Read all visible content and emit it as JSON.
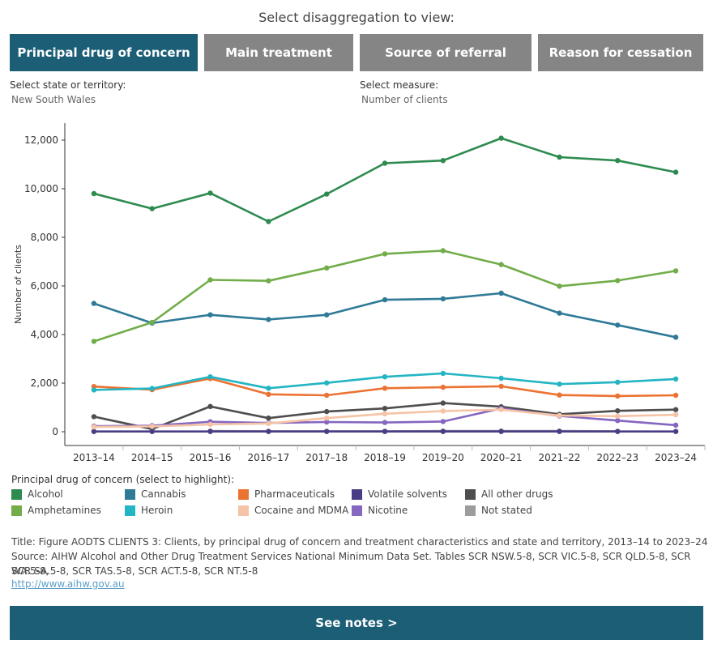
{
  "header": {
    "prompt": "Select disaggregation to view:",
    "tabs": [
      {
        "label": "Principal drug of concern",
        "active": true
      },
      {
        "label": "Main treatment",
        "active": false
      },
      {
        "label": "Source of referral",
        "active": false
      },
      {
        "label": "Reason for cessation",
        "active": false
      }
    ]
  },
  "filters": {
    "state_label": "Select state or territory:",
    "state_value": "New South Wales",
    "measure_label": "Select measure:",
    "measure_value": "Number of clients"
  },
  "colors": {
    "active_tab": "#1b5e75",
    "inactive_tab": "#858585",
    "notes_button": "#1b5e75"
  },
  "chart_data": {
    "type": "line",
    "ylabel": "Number of clients",
    "ylim": [
      0,
      12800
    ],
    "yticks": [
      0,
      2000,
      4000,
      6000,
      8000,
      10000,
      12000
    ],
    "ytick_labels": [
      "0",
      "2,000",
      "4,000",
      "6,000",
      "8,000",
      "10,000",
      "12,000"
    ],
    "categories": [
      "2013–14",
      "2014–15",
      "2015–16",
      "2016–17",
      "2017–18",
      "2018–19",
      "2019–20",
      "2020–21",
      "2021–22",
      "2022–23",
      "2023–24"
    ],
    "grid": false,
    "legend_placement": "bottom",
    "series": [
      {
        "name": "Alcohol",
        "color": "#2e8b4f",
        "values": [
          9800,
          9180,
          9820,
          8650,
          9780,
          11050,
          11160,
          12080,
          11300,
          11160,
          10680
        ]
      },
      {
        "name": "Amphetamines",
        "color": "#72ad4a",
        "values": [
          3720,
          4500,
          6250,
          6210,
          6740,
          7320,
          7450,
          6880,
          5990,
          6220,
          6620
        ]
      },
      {
        "name": "Cannabis",
        "color": "#2f7a97",
        "values": [
          5280,
          4470,
          4810,
          4620,
          4810,
          5430,
          5470,
          5700,
          4880,
          4390,
          3890
        ]
      },
      {
        "name": "Heroin",
        "color": "#23b5c3",
        "values": [
          1720,
          1780,
          2260,
          1790,
          2010,
          2260,
          2400,
          2200,
          1960,
          2040,
          2170
        ]
      },
      {
        "name": "Pharmaceuticals",
        "color": "#ec7232",
        "values": [
          1860,
          1730,
          2190,
          1540,
          1500,
          1790,
          1830,
          1870,
          1510,
          1470,
          1500
        ]
      },
      {
        "name": "Cocaine and MDMA",
        "color": "#f5c3a5",
        "values": [
          200,
          220,
          300,
          340,
          560,
          740,
          850,
          910,
          670,
          640,
          700
        ]
      },
      {
        "name": "Volatile solvents",
        "color": "#4a3d86",
        "values": [
          10,
          10,
          10,
          10,
          10,
          10,
          10,
          10,
          10,
          10,
          10
        ]
      },
      {
        "name": "Nicotine",
        "color": "#8566c0",
        "values": [
          230,
          250,
          410,
          360,
          400,
          380,
          420,
          960,
          650,
          460,
          270
        ]
      },
      {
        "name": "All other drugs",
        "color": "#4e4e4e",
        "values": [
          620,
          110,
          1040,
          560,
          830,
          960,
          1180,
          1030,
          720,
          860,
          910
        ]
      },
      {
        "name": "Not stated",
        "color": "#9c9c9c",
        "values": [
          null,
          null,
          30,
          20,
          20,
          20,
          30,
          30,
          30,
          20,
          null
        ]
      }
    ]
  },
  "legend": {
    "title": "Principal drug of concern (select to highlight):",
    "items": [
      {
        "name": "Alcohol",
        "color": "#2e8b4f"
      },
      {
        "name": "Amphetamines",
        "color": "#72ad4a"
      },
      {
        "name": "Cannabis",
        "color": "#2f7a97"
      },
      {
        "name": "Heroin",
        "color": "#23b5c3"
      },
      {
        "name": "Pharmaceuticals",
        "color": "#ec7232"
      },
      {
        "name": "Cocaine and MDMA",
        "color": "#f5c3a5"
      },
      {
        "name": "Volatile solvents",
        "color": "#4a3d86"
      },
      {
        "name": "Nicotine",
        "color": "#8566c0"
      },
      {
        "name": "All other drugs",
        "color": "#4e4e4e"
      },
      {
        "name": "Not stated",
        "color": "#9c9c9c"
      }
    ]
  },
  "footer": {
    "title_line": "Title: Figure AODTS CLIENTS 3: Clients, by principal drug of concern and treatment characteristics and state and territory, 2013–14 to 2023–24",
    "source_line1": "Source: AIHW Alcohol and Other Drug Treatment Services National Minimum Data Set. Tables SCR NSW.5-8, SCR VIC.5-8, SCR QLD.5-8, SCR WA.5-8,",
    "source_line2": "SCR SA.5-8, SCR TAS.5-8, SCR ACT.5-8, SCR NT.5-8",
    "link": "http://www.aihw.gov.au",
    "notes_button": "See notes >"
  }
}
